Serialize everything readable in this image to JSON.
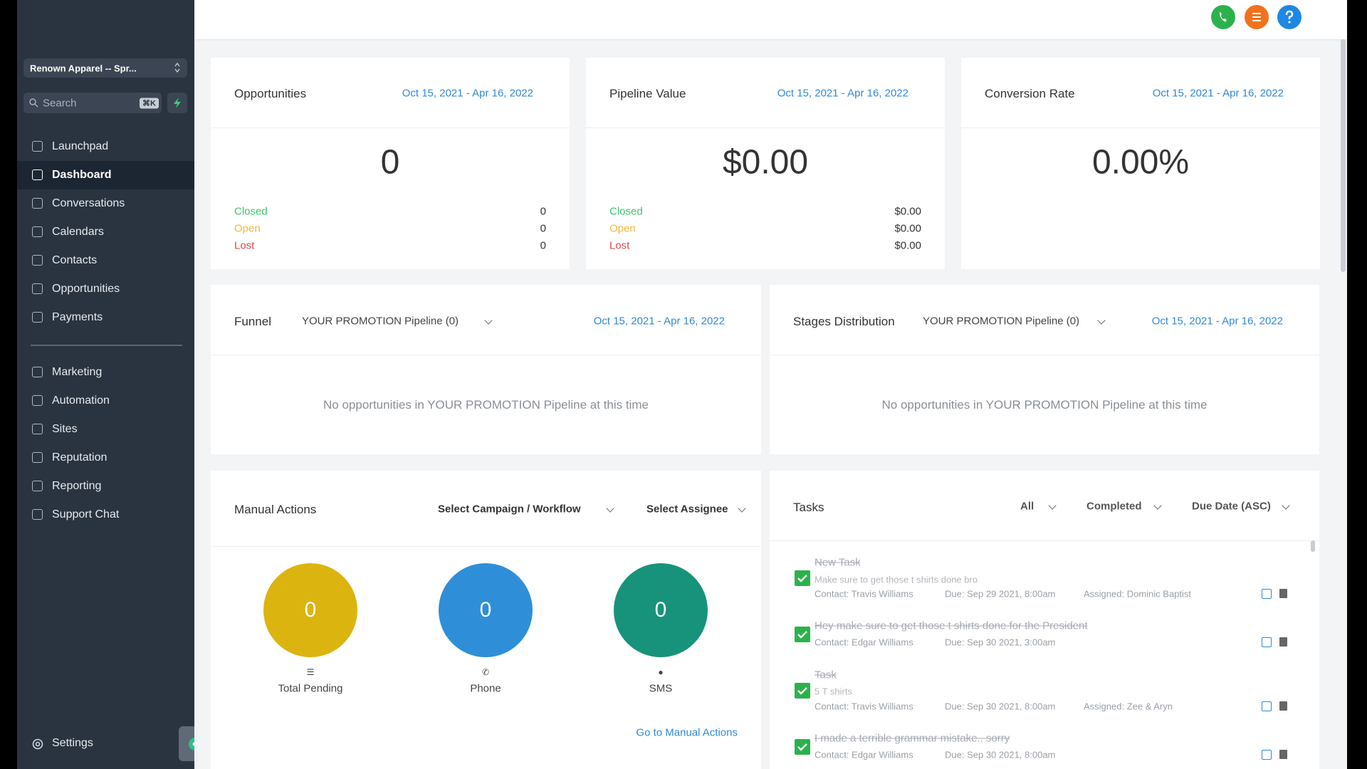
{
  "sidebar": {
    "account": "Renown Apparel -- Spr...",
    "search": "Search",
    "shortcut": "⌘K",
    "nav": [
      "Launchpad",
      "Dashboard",
      "Conversations",
      "Calendars",
      "Contacts",
      "Opportunities",
      "Payments"
    ],
    "nav2": [
      "Marketing",
      "Automation",
      "Sites",
      "Reputation",
      "Reporting",
      "Support Chat"
    ],
    "settings": "Settings"
  },
  "cards": [
    {
      "title": "Opportunities",
      "date": "Oct 15, 2021 - Apr 16, 2022",
      "value": "0",
      "rows": [
        {
          "label": "Closed",
          "value": "0"
        },
        {
          "label": "Open",
          "value": "0"
        },
        {
          "label": "Lost",
          "value": "0"
        }
      ]
    },
    {
      "title": "Pipeline Value",
      "date": "Oct 15, 2021 - Apr 16, 2022",
      "value": "$0.00",
      "rows": [
        {
          "label": "Closed",
          "value": "$0.00"
        },
        {
          "label": "Open",
          "value": "$0.00"
        },
        {
          "label": "Lost",
          "value": "$0.00"
        }
      ]
    },
    {
      "title": "Conversion Rate",
      "date": "Oct 15, 2021 - Apr 16, 2022",
      "value": "0.00%",
      "rows": []
    }
  ],
  "funnel": {
    "title": "Funnel",
    "pipeline": "YOUR PROMOTION Pipeline (0)",
    "date": "Oct 15, 2021 - Apr 16, 2022",
    "empty": "No opportunities in YOUR PROMOTION Pipeline at this time"
  },
  "stages": {
    "title": "Stages Distribution",
    "pipeline": "YOUR PROMOTION Pipeline (0)",
    "date": "Oct 15, 2021 - Apr 16, 2022",
    "empty": "No opportunities in YOUR PROMOTION Pipeline at this time"
  },
  "manual_actions": {
    "title": "Manual Actions",
    "campaign": "Select Campaign / Workflow",
    "assignee": "Select Assignee",
    "circles": [
      {
        "value": "0",
        "label": "Total Pending"
      },
      {
        "value": "0",
        "label": "Phone"
      },
      {
        "value": "0",
        "label": "SMS"
      }
    ],
    "link": "Go to Manual Actions"
  },
  "tasks": {
    "title": "Tasks",
    "filters": [
      "All",
      "Completed",
      "Due Date (ASC)"
    ],
    "items": [
      {
        "title": "New Task",
        "description": "Make sure to get those t shirts done bro",
        "contact": "Contact: Travis Williams",
        "due": "Due: Sep 29 2021, 8:00am",
        "assigned": "Assigned: Dominic Baptist"
      },
      {
        "title": "Hey make sure to get those t shirts done for the President",
        "contact": "Contact: Edgar Williams",
        "due": "Due: Sep 30 2021, 3:00am"
      },
      {
        "title": "Task",
        "description": "5 T shirts",
        "contact": "Contact: Travis Williams",
        "due": "Due: Sep 30 2021, 8:00am",
        "assigned": "Assigned: Zee & Aryn"
      },
      {
        "title": "I made a terrible grammar mistake.. sorry",
        "contact": "Contact: Edgar Williams",
        "due": "Due: Sep 30 2021, 8:00am"
      }
    ]
  }
}
